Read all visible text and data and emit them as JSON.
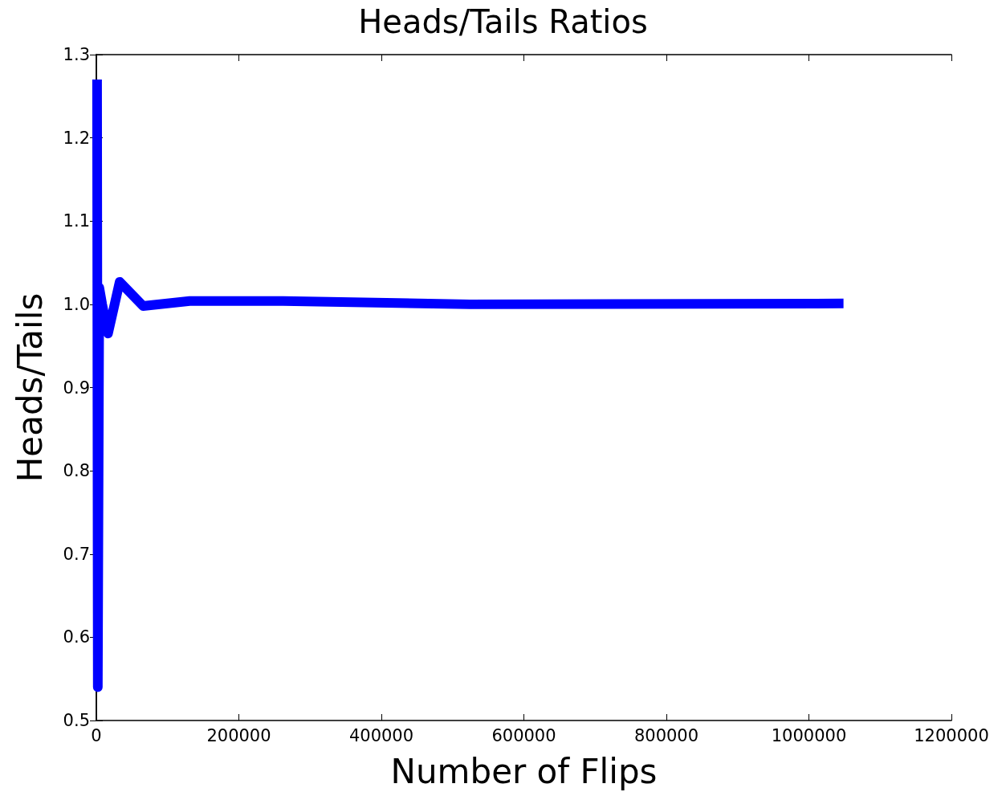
{
  "chart_data": {
    "type": "line",
    "title": "Heads/Tails Ratios",
    "xlabel": "Number of Flips",
    "ylabel": "Heads/Tails",
    "x": [
      1024,
      2048,
      4096,
      8192,
      16384,
      32768,
      65536,
      131072,
      262144,
      524288,
      1048576
    ],
    "series": [
      {
        "color": "#0000ff",
        "values": [
          1.27,
          0.54,
          1.02,
          1.0,
          0.965,
          1.027,
          0.998,
          1.004,
          1.004,
          1.0,
          1.001
        ]
      }
    ],
    "xlim": [
      0,
      1200000
    ],
    "xticks": [
      0,
      200000,
      400000,
      600000,
      800000,
      1000000,
      1200000
    ],
    "ylim": [
      0.5,
      1.3
    ],
    "yticks": [
      0.5,
      0.6,
      0.7,
      0.8,
      0.9,
      {
        "value": 1.0,
        "label": "1.0"
      },
      1.1,
      1.2,
      1.3
    ],
    "grid": false,
    "marker": "none",
    "line_style": "solid"
  }
}
